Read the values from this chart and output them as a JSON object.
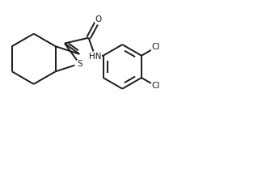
{
  "bg_color": "#ffffff",
  "line_color": "#1a1a1a",
  "line_width": 1.4,
  "figsize": [
    3.24,
    2.1
  ],
  "dpi": 100,
  "xlim": [
    0,
    8.5
  ],
  "ylim": [
    0,
    5.5
  ]
}
